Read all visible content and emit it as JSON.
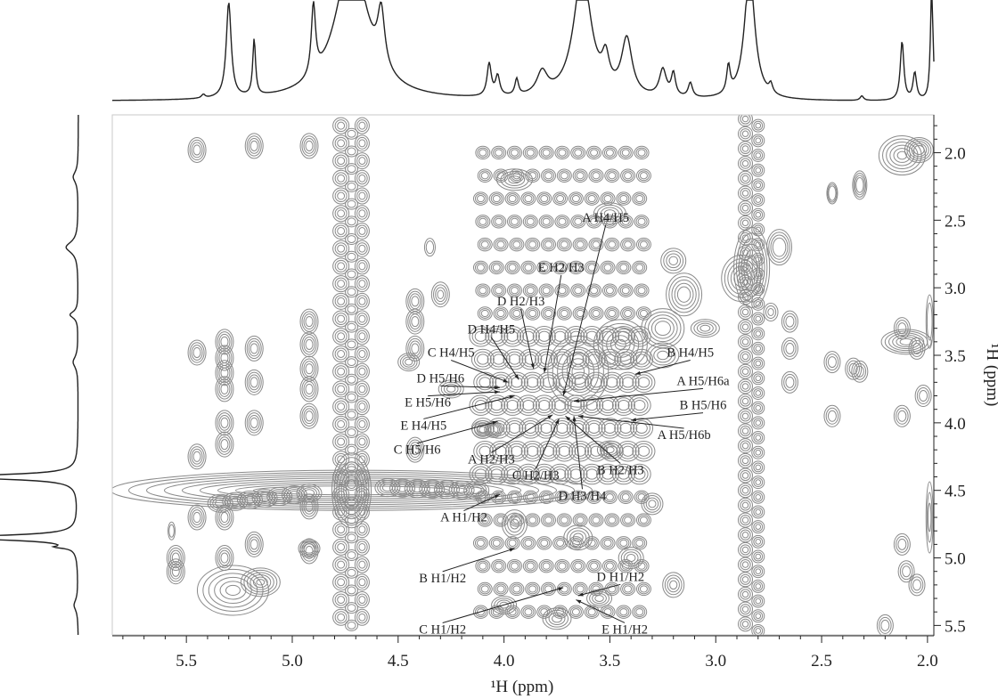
{
  "chart_data": {
    "type": "contour",
    "title": "",
    "xlabel": "¹H (ppm)",
    "ylabel": "¹H (ppm)",
    "xlim": [
      5.85,
      1.97
    ],
    "ylim": [
      1.72,
      5.57
    ],
    "x_reversed": true,
    "y_reversed": true,
    "x_ticks": [
      {
        "value": 5.5,
        "label": "5.5"
      },
      {
        "value": 5.0,
        "label": "5.0"
      },
      {
        "value": 4.5,
        "label": "4.5"
      },
      {
        "value": 4.0,
        "label": "4.0"
      },
      {
        "value": 3.5,
        "label": "3.5"
      },
      {
        "value": 3.0,
        "label": "3.0"
      },
      {
        "value": 2.5,
        "label": "2.5"
      },
      {
        "value": 2.0,
        "label": "2.0"
      }
    ],
    "y_ticks": [
      {
        "value": 2.0,
        "label": "2.0"
      },
      {
        "value": 2.5,
        "label": "2.5"
      },
      {
        "value": 3.0,
        "label": "3.0"
      },
      {
        "value": 3.5,
        "label": "3.5"
      },
      {
        "value": 4.0,
        "label": "4.0"
      },
      {
        "value": 4.5,
        "label": "4.5"
      },
      {
        "value": 5.0,
        "label": "5.0"
      },
      {
        "value": 5.5,
        "label": "5.5"
      }
    ],
    "contour_color": "#8a8a8a",
    "projection_color": "#222222",
    "annotations": [
      {
        "label": "A H4/H5",
        "x": 3.72,
        "y": 3.8,
        "tx": 3.52,
        "ty": 2.51
      },
      {
        "label": "E H2/H3",
        "x": 3.81,
        "y": 3.63,
        "tx": 3.73,
        "ty": 2.88
      },
      {
        "label": "D H2/H3",
        "x": 3.86,
        "y": 3.6,
        "tx": 3.92,
        "ty": 3.13
      },
      {
        "label": "D H4/H5",
        "x": 3.93,
        "y": 3.68,
        "tx": 4.06,
        "ty": 3.34
      },
      {
        "label": "C H4/H5",
        "x": 3.98,
        "y": 3.7,
        "tx": 4.25,
        "ty": 3.51
      },
      {
        "label": "D H5/H6",
        "x": 4.02,
        "y": 3.74,
        "tx": 4.3,
        "ty": 3.7
      },
      {
        "label": "E H5/H6",
        "x": 4.02,
        "y": 3.77,
        "tx": 4.36,
        "ty": 3.88
      },
      {
        "label": "E H4/H5",
        "x": 3.95,
        "y": 3.8,
        "tx": 4.38,
        "ty": 4.05
      },
      {
        "label": "C H5/H6",
        "x": 4.03,
        "y": 3.99,
        "tx": 4.41,
        "ty": 4.23
      },
      {
        "label": "B H4/H5",
        "x": 3.38,
        "y": 3.64,
        "tx": 3.12,
        "ty": 3.51
      },
      {
        "label": "A H5/H6a",
        "x": 3.67,
        "y": 3.84,
        "tx": 3.06,
        "ty": 3.72
      },
      {
        "label": "B H5/H6",
        "x": 3.4,
        "y": 3.98,
        "tx": 3.06,
        "ty": 3.9
      },
      {
        "label": "A H5/H6b",
        "x": 3.65,
        "y": 3.95,
        "tx": 3.15,
        "ty": 4.12
      },
      {
        "label": "A H2/H3",
        "x": 3.77,
        "y": 3.94,
        "tx": 4.06,
        "ty": 4.3
      },
      {
        "label": "C H2/H3",
        "x": 3.74,
        "y": 3.97,
        "tx": 3.85,
        "ty": 4.42
      },
      {
        "label": "B H2/H3",
        "x": 3.71,
        "y": 3.95,
        "tx": 3.45,
        "ty": 4.38
      },
      {
        "label": "D H3/H4",
        "x": 3.67,
        "y": 3.95,
        "tx": 3.63,
        "ty": 4.57
      },
      {
        "label": "A H1/H2",
        "x": 4.02,
        "y": 4.53,
        "tx": 4.19,
        "ty": 4.73
      },
      {
        "label": "B H1/H2",
        "x": 3.95,
        "y": 4.93,
        "tx": 4.29,
        "ty": 5.18
      },
      {
        "label": "D H1/H2",
        "x": 3.65,
        "y": 5.28,
        "tx": 3.45,
        "ty": 5.17
      },
      {
        "label": "C H1/H2",
        "x": 3.72,
        "y": 5.22,
        "tx": 4.29,
        "ty": 5.56
      },
      {
        "label": "E H1/H2",
        "x": 3.66,
        "y": 5.31,
        "tx": 3.43,
        "ty": 5.56
      }
    ]
  }
}
